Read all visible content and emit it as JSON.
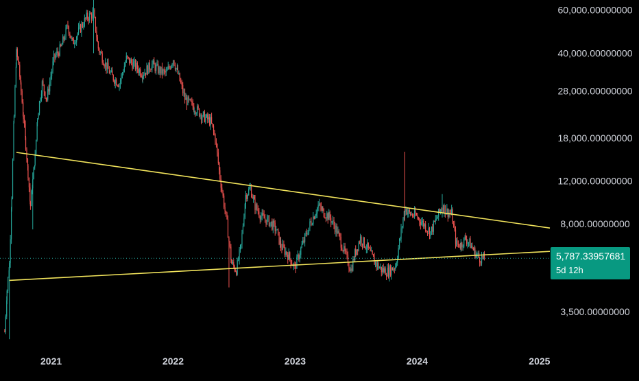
{
  "chart_data": {
    "type": "candlestick",
    "scale": "log",
    "grid": false,
    "legend": "none",
    "x_range": [
      "2020-08-01",
      "2025-02-01"
    ],
    "y_range": [
      2600,
      66000
    ],
    "x_ticks": [
      {
        "date": "2021-01-01",
        "label": "2021"
      },
      {
        "date": "2022-01-01",
        "label": "2022"
      },
      {
        "date": "2023-01-01",
        "label": "2023"
      },
      {
        "date": "2024-01-01",
        "label": "2024"
      },
      {
        "date": "2025-01-01",
        "label": "2025"
      }
    ],
    "y_ticks": [
      {
        "value": 60000,
        "label": "60,000.00000000"
      },
      {
        "value": 40000,
        "label": "40,000.00000000"
      },
      {
        "value": 28000,
        "label": "28,000.00000000"
      },
      {
        "value": 18000,
        "label": "18,000.00000000"
      },
      {
        "value": 12000,
        "label": "12,000.00000000"
      },
      {
        "value": 8000,
        "label": "8,000.00000000"
      },
      {
        "value": 3500,
        "label": "3,500.00000000"
      }
    ],
    "price_path": [
      [
        "2020-08-15",
        2900
      ],
      [
        "2020-08-22",
        4300
      ],
      [
        "2020-08-29",
        5500
      ],
      [
        "2020-09-05",
        10500
      ],
      [
        "2020-09-12",
        22000
      ],
      [
        "2020-09-19",
        40000
      ],
      [
        "2020-09-26",
        36000
      ],
      [
        "2020-10-03",
        28000
      ],
      [
        "2020-10-10",
        22000
      ],
      [
        "2020-10-17",
        17000
      ],
      [
        "2020-10-24",
        13000
      ],
      [
        "2020-10-31",
        9500
      ],
      [
        "2020-11-07",
        12000
      ],
      [
        "2020-11-14",
        15000
      ],
      [
        "2020-11-21",
        22000
      ],
      [
        "2020-12-05",
        30000
      ],
      [
        "2020-12-19",
        26000
      ],
      [
        "2021-01-09",
        38000
      ],
      [
        "2021-01-30",
        42000
      ],
      [
        "2021-02-20",
        52000
      ],
      [
        "2021-03-06",
        44000
      ],
      [
        "2021-03-27",
        50000
      ],
      [
        "2021-04-17",
        56000
      ],
      [
        "2021-05-08",
        58000
      ],
      [
        "2021-05-22",
        42000
      ],
      [
        "2021-06-12",
        36000
      ],
      [
        "2021-07-03",
        32000
      ],
      [
        "2021-07-24",
        30000
      ],
      [
        "2021-08-14",
        38000
      ],
      [
        "2021-09-04",
        36000
      ],
      [
        "2021-10-02",
        33000
      ],
      [
        "2021-10-30",
        36000
      ],
      [
        "2021-11-20",
        34000
      ],
      [
        "2021-12-11",
        33000
      ],
      [
        "2022-01-01",
        38000
      ],
      [
        "2022-01-15",
        33000
      ],
      [
        "2022-02-05",
        26000
      ],
      [
        "2022-03-05",
        24000
      ],
      [
        "2022-04-02",
        22000
      ],
      [
        "2022-04-23",
        21000
      ],
      [
        "2022-05-07",
        18000
      ],
      [
        "2022-05-21",
        12500
      ],
      [
        "2022-06-11",
        8000
      ],
      [
        "2022-06-25",
        5500
      ],
      [
        "2022-07-09",
        5200
      ],
      [
        "2022-07-23",
        6500
      ],
      [
        "2022-08-06",
        10500
      ],
      [
        "2022-08-20",
        11200
      ],
      [
        "2022-09-03",
        9500
      ],
      [
        "2022-09-24",
        8500
      ],
      [
        "2022-10-15",
        8200
      ],
      [
        "2022-11-05",
        7600
      ],
      [
        "2022-11-19",
        6500
      ],
      [
        "2022-12-10",
        6000
      ],
      [
        "2022-12-31",
        5300
      ],
      [
        "2023-01-21",
        6500
      ],
      [
        "2023-02-18",
        8200
      ],
      [
        "2023-03-11",
        9500
      ],
      [
        "2023-03-25",
        9000
      ],
      [
        "2023-04-15",
        8500
      ],
      [
        "2023-05-06",
        7500
      ],
      [
        "2023-05-27",
        6200
      ],
      [
        "2023-06-17",
        5200
      ],
      [
        "2023-07-01",
        6200
      ],
      [
        "2023-07-15",
        7000
      ],
      [
        "2023-08-05",
        6400
      ],
      [
        "2023-08-26",
        5600
      ],
      [
        "2023-09-16",
        5200
      ],
      [
        "2023-10-07",
        5100
      ],
      [
        "2023-10-28",
        5400
      ],
      [
        "2023-11-11",
        7000
      ],
      [
        "2023-11-25",
        9300
      ],
      [
        "2023-12-09",
        8800
      ],
      [
        "2023-12-30",
        8600
      ],
      [
        "2024-01-20",
        8000
      ],
      [
        "2024-02-10",
        7400
      ],
      [
        "2024-03-02",
        8600
      ],
      [
        "2024-03-16",
        9500
      ],
      [
        "2024-03-30",
        9000
      ],
      [
        "2024-04-13",
        8800
      ],
      [
        "2024-04-27",
        6600
      ],
      [
        "2024-05-11",
        6600
      ],
      [
        "2024-05-25",
        7000
      ],
      [
        "2024-06-08",
        6600
      ],
      [
        "2024-06-22",
        6100
      ],
      [
        "2024-07-06",
        5800
      ],
      [
        "2024-07-20",
        5787.33957681
      ]
    ],
    "spikes": [
      {
        "date": "2020-08-29",
        "high": 5600,
        "low": 2700
      },
      {
        "date": "2020-11-07",
        "high": 13000,
        "low": 7600
      },
      {
        "date": "2021-05-08",
        "high": 66000,
        "low": 40000
      },
      {
        "date": "2022-06-18",
        "high": 7000,
        "low": 4400
      },
      {
        "date": "2023-11-25",
        "high": 15800,
        "low": 8200
      },
      {
        "date": "2024-03-16",
        "high": 10600,
        "low": 8500
      }
    ],
    "trendlines": [
      {
        "color": "#f2e45c",
        "from": [
          "2020-09-19",
          15700
        ],
        "to": [
          "2025-02-01",
          7700
        ]
      },
      {
        "color": "#f2e45c",
        "from": [
          "2020-08-29",
          4700
        ],
        "to": [
          "2025-02-01",
          6180
        ]
      }
    ],
    "current_price": {
      "value": 5787.33957681,
      "label": "5,787.33957681",
      "countdown": "5d 12h"
    },
    "colors": {
      "up": "#26a69a",
      "down": "#ef5350",
      "trendline": "#f2e45c",
      "badge": "#089981",
      "axis_text": "#d1d4dc",
      "price_line": "#26a69a"
    }
  }
}
